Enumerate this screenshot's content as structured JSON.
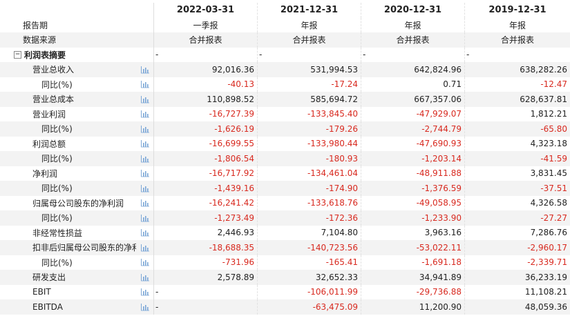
{
  "header": {
    "dates": [
      "2022-03-31",
      "2021-12-31",
      "2020-12-31",
      "2019-12-31"
    ],
    "period_label": "报告期",
    "periods": [
      "一季报",
      "年报",
      "年报",
      "年报"
    ],
    "source_label": "数据来源",
    "sources": [
      "合并报表",
      "合并报表",
      "合并报表",
      "合并报表"
    ]
  },
  "section": {
    "label": "利润表摘要",
    "toggle": "−",
    "values": [
      "-",
      "-",
      "-",
      "-"
    ]
  },
  "rows": [
    {
      "label": "营业总收入",
      "indent": 1,
      "values": [
        "92,016.36",
        "531,994.53",
        "642,824.96",
        "638,282.26"
      ]
    },
    {
      "label": "同比(%)",
      "indent": 2,
      "values": [
        "-40.13",
        "-17.24",
        "0.71",
        "-12.47"
      ]
    },
    {
      "label": "营业总成本",
      "indent": 1,
      "values": [
        "110,898.52",
        "585,694.72",
        "667,357.06",
        "628,637.81"
      ]
    },
    {
      "label": "营业利润",
      "indent": 1,
      "values": [
        "-16,727.39",
        "-133,845.40",
        "-47,929.07",
        "1,812.21"
      ]
    },
    {
      "label": "同比(%)",
      "indent": 2,
      "values": [
        "-1,626.19",
        "-179.26",
        "-2,744.79",
        "-65.80"
      ]
    },
    {
      "label": "利润总额",
      "indent": 1,
      "values": [
        "-16,699.55",
        "-133,980.44",
        "-47,690.93",
        "4,323.18"
      ]
    },
    {
      "label": "同比(%)",
      "indent": 2,
      "values": [
        "-1,806.54",
        "-180.93",
        "-1,203.14",
        "-41.59"
      ]
    },
    {
      "label": "净利润",
      "indent": 1,
      "values": [
        "-16,717.92",
        "-134,461.04",
        "-48,911.88",
        "3,831.45"
      ]
    },
    {
      "label": "同比(%)",
      "indent": 2,
      "values": [
        "-1,439.16",
        "-174.90",
        "-1,376.59",
        "-37.51"
      ]
    },
    {
      "label": "归属母公司股东的净利润",
      "indent": 1,
      "values": [
        "-16,241.42",
        "-133,618.76",
        "-49,058.95",
        "4,326.58"
      ]
    },
    {
      "label": "同比(%)",
      "indent": 2,
      "values": [
        "-1,273.49",
        "-172.36",
        "-1,233.90",
        "-27.27"
      ]
    },
    {
      "label": "非经常性损益",
      "indent": 1,
      "values": [
        "2,446.93",
        "7,104.80",
        "3,963.16",
        "7,286.76"
      ]
    },
    {
      "label": "扣非后归属母公司股东的净利",
      "indent": 1,
      "values": [
        "-18,688.35",
        "-140,723.56",
        "-53,022.11",
        "-2,960.17"
      ]
    },
    {
      "label": "同比(%)",
      "indent": 2,
      "values": [
        "-731.96",
        "-165.41",
        "-1,691.18",
        "-2,339.71"
      ]
    },
    {
      "label": "研发支出",
      "indent": 1,
      "values": [
        "2,578.89",
        "32,652.33",
        "34,941.89",
        "36,233.19"
      ]
    },
    {
      "label": "EBIT",
      "indent": 1,
      "values": [
        "-",
        "-106,011.99",
        "-29,736.88",
        "11,108.21"
      ]
    },
    {
      "label": "EBITDA",
      "indent": 1,
      "values": [
        "-",
        "-63,475.09",
        "11,200.90",
        "48,059.36"
      ]
    }
  ],
  "icon": "bar-chart-icon",
  "colors": {
    "negative": "#d8291f",
    "alt_row": "#f3f3f3",
    "icon": "#7aa6d6"
  }
}
